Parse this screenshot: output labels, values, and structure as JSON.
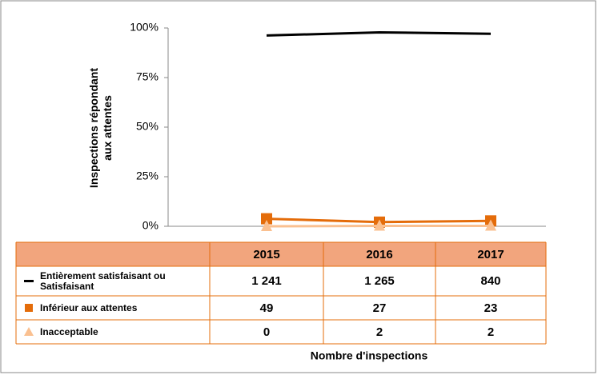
{
  "chart_data": {
    "type": "line",
    "ylabel": [
      "Inspections répondant",
      "aux attentes"
    ],
    "xlabel": "Nombre d'inspections",
    "categories": [
      "2015",
      "2016",
      "2017"
    ],
    "ylim": [
      0,
      100
    ],
    "yticks": [
      {
        "value": 0,
        "label": "0%"
      },
      {
        "value": 25,
        "label": "25%"
      },
      {
        "value": 50,
        "label": "50%"
      },
      {
        "value": 75,
        "label": "75%"
      },
      {
        "value": 100,
        "label": "100%"
      }
    ],
    "series": [
      {
        "name": "Entièrement satisfaisant  ou Satisfaisant",
        "color": "#000000",
        "marker": "none",
        "values": [
          96.2,
          97.8,
          97.1
        ],
        "counts": [
          "1 241",
          "1 265",
          "840"
        ]
      },
      {
        "name": "Inférieur aux attentes",
        "color": "#e46c0a",
        "marker": "square",
        "values": [
          3.8,
          2.1,
          2.7
        ],
        "counts": [
          "49",
          "27",
          "23"
        ]
      },
      {
        "name": "Inacceptable",
        "color": "#fac090",
        "marker": "triangle",
        "values": [
          0,
          0.2,
          0.2
        ],
        "counts": [
          "0",
          "2",
          "2"
        ]
      }
    ]
  }
}
